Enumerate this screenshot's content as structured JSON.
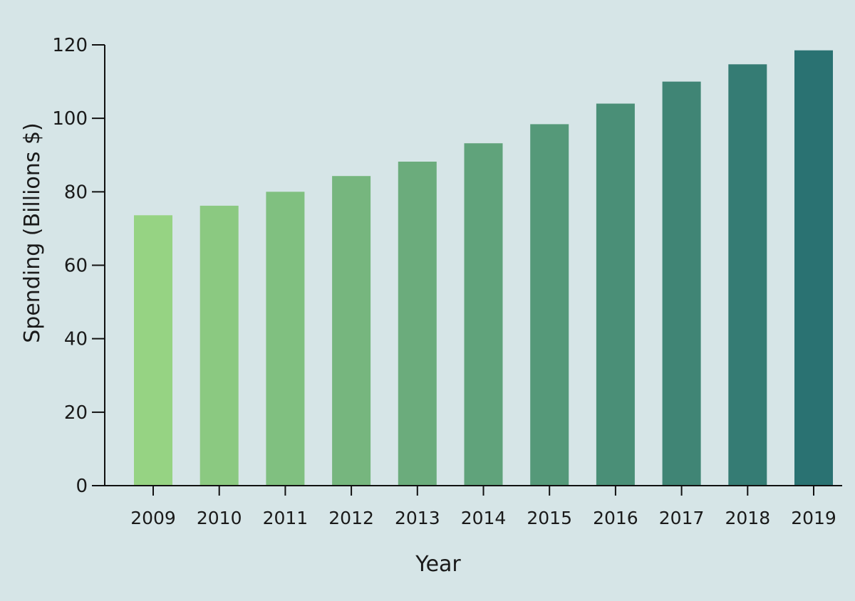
{
  "chart_data": {
    "type": "bar",
    "title": "",
    "xlabel": "Year",
    "ylabel": "Spending (Billions $)",
    "categories": [
      "2009",
      "2010",
      "2011",
      "2012",
      "2013",
      "2014",
      "2015",
      "2016",
      "2017",
      "2018",
      "2019"
    ],
    "values": [
      73.6,
      76.2,
      80.0,
      84.3,
      88.2,
      93.2,
      98.4,
      104.0,
      110.0,
      114.7,
      118.5
    ],
    "ylim": [
      0,
      120
    ],
    "yticks": [
      "0",
      "20",
      "40",
      "60",
      "80",
      "100",
      "120"
    ],
    "grid": false,
    "legend": "none",
    "bar_color_start": "#96d383",
    "bar_color_end": "#2a7272"
  },
  "background_color": "#d6e5e7"
}
